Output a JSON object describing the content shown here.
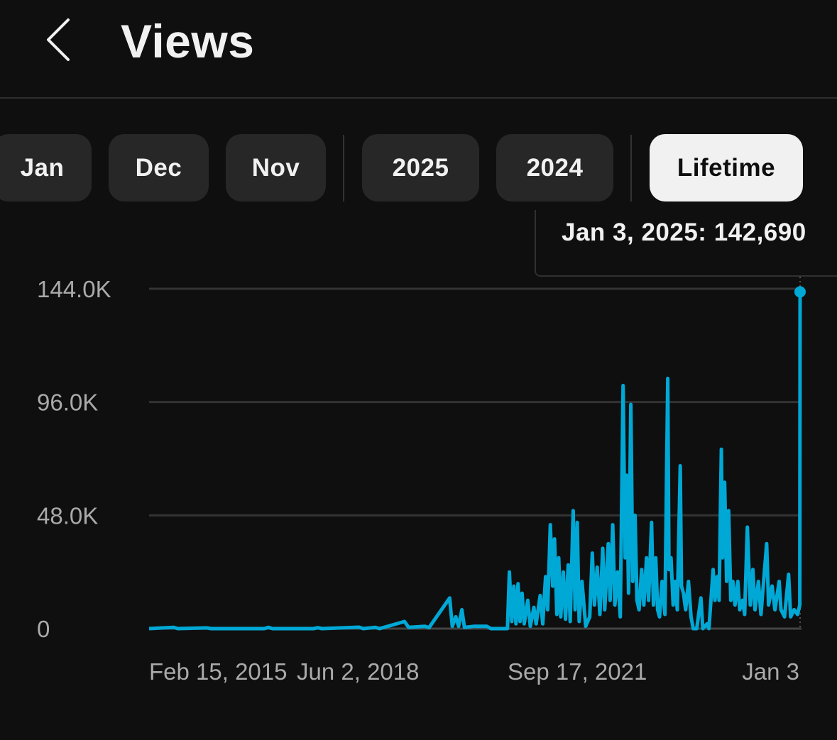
{
  "header": {
    "title": "Views",
    "back_icon": "chevron-left-icon"
  },
  "chips": [
    {
      "label": "Jan",
      "selected": false
    },
    {
      "label": "Dec",
      "selected": false
    },
    {
      "label": "Nov",
      "selected": false
    },
    {
      "label": "2025",
      "selected": false
    },
    {
      "label": "2024",
      "selected": false
    },
    {
      "label": "Lifetime",
      "selected": true
    }
  ],
  "tooltip": {
    "text": "Jan 3, 2025: 142,690"
  },
  "colors": {
    "background": "#0f0f0f",
    "line": "#00a8d6",
    "chip": "#272727",
    "chip_selected": "#f1f1f1",
    "grid": "#333333"
  },
  "chart_data": {
    "type": "line",
    "title": "",
    "xlabel": "",
    "ylabel": "",
    "ylim": [
      0,
      144000
    ],
    "y_ticks": [
      {
        "value": 0,
        "label": "0"
      },
      {
        "value": 48000,
        "label": "48.0K"
      },
      {
        "value": 96000,
        "label": "96.0K"
      },
      {
        "value": 144000,
        "label": "144.0K"
      }
    ],
    "x_ticks": [
      "Feb 15, 2015",
      "Jun 2, 2018",
      "Sep 17, 2021",
      "Jan 3"
    ],
    "x_range": [
      "2011-11-01",
      "2025-01-03"
    ],
    "grid": true,
    "highlight": {
      "date": "2025-01-03",
      "value": 142690
    },
    "series": [
      {
        "points": [
          [
            "2011-11-01",
            0
          ],
          [
            "2012-05-01",
            500
          ],
          [
            "2012-06-01",
            0
          ],
          [
            "2013-01-01",
            300
          ],
          [
            "2013-02-01",
            0
          ],
          [
            "2014-03-01",
            0
          ],
          [
            "2014-04-01",
            500
          ],
          [
            "2014-05-01",
            0
          ],
          [
            "2015-03-01",
            0
          ],
          [
            "2015-04-01",
            400
          ],
          [
            "2015-05-01",
            0
          ],
          [
            "2016-02-01",
            600
          ],
          [
            "2016-03-01",
            0
          ],
          [
            "2016-06-01",
            500
          ],
          [
            "2016-07-01",
            0
          ],
          [
            "2017-01-01",
            3000
          ],
          [
            "2017-02-01",
            500
          ],
          [
            "2017-06-01",
            1000
          ],
          [
            "2017-07-01",
            400
          ],
          [
            "2017-12-01",
            13000
          ],
          [
            "2017-12-20",
            1000
          ],
          [
            "2018-01-15",
            5000
          ],
          [
            "2018-02-05",
            1000
          ],
          [
            "2018-03-01",
            8000
          ],
          [
            "2018-03-20",
            500
          ],
          [
            "2018-06-01",
            1000
          ],
          [
            "2018-09-01",
            1000
          ],
          [
            "2018-10-01",
            0
          ],
          [
            "2019-02-01",
            0
          ],
          [
            "2019-02-15",
            24000
          ],
          [
            "2019-03-05",
            3000
          ],
          [
            "2019-03-20",
            18000
          ],
          [
            "2019-04-05",
            2000
          ],
          [
            "2019-04-20",
            19000
          ],
          [
            "2019-05-05",
            3000
          ],
          [
            "2019-05-20",
            15000
          ],
          [
            "2019-06-05",
            2000
          ],
          [
            "2019-07-01",
            12000
          ],
          [
            "2019-07-20",
            1000
          ],
          [
            "2019-08-15",
            9000
          ],
          [
            "2019-09-01",
            2000
          ],
          [
            "2019-10-01",
            14000
          ],
          [
            "2019-10-20",
            2000
          ],
          [
            "2019-11-10",
            22000
          ],
          [
            "2019-11-25",
            8000
          ],
          [
            "2019-12-15",
            44000
          ],
          [
            "2020-01-01",
            18000
          ],
          [
            "2020-01-15",
            38000
          ],
          [
            "2020-02-01",
            6000
          ],
          [
            "2020-02-15",
            30000
          ],
          [
            "2020-03-01",
            5000
          ],
          [
            "2020-03-20",
            24000
          ],
          [
            "2020-04-05",
            4000
          ],
          [
            "2020-04-25",
            27000
          ],
          [
            "2020-05-10",
            3000
          ],
          [
            "2020-06-01",
            50000
          ],
          [
            "2020-06-15",
            8000
          ],
          [
            "2020-07-01",
            45000
          ],
          [
            "2020-07-15",
            3000
          ],
          [
            "2020-08-05",
            20000
          ],
          [
            "2020-09-01",
            1000
          ],
          [
            "2020-10-01",
            5000
          ],
          [
            "2020-10-20",
            32000
          ],
          [
            "2020-11-05",
            10000
          ],
          [
            "2020-11-25",
            26000
          ],
          [
            "2020-12-15",
            6000
          ],
          [
            "2021-01-05",
            34000
          ],
          [
            "2021-01-20",
            8000
          ],
          [
            "2021-02-15",
            36000
          ],
          [
            "2021-03-01",
            12000
          ],
          [
            "2021-03-20",
            44000
          ],
          [
            "2021-04-05",
            10000
          ],
          [
            "2021-04-25",
            24000
          ],
          [
            "2021-05-15",
            5000
          ],
          [
            "2021-06-05",
            103000
          ],
          [
            "2021-06-20",
            30000
          ],
          [
            "2021-07-01",
            65000
          ],
          [
            "2021-07-15",
            15000
          ],
          [
            "2021-08-01",
            95000
          ],
          [
            "2021-08-15",
            20000
          ],
          [
            "2021-09-01",
            48000
          ],
          [
            "2021-09-15",
            12000
          ],
          [
            "2021-10-01",
            8000
          ],
          [
            "2021-10-20",
            25000
          ],
          [
            "2021-11-05",
            10000
          ],
          [
            "2021-11-25",
            30000
          ],
          [
            "2021-12-10",
            12000
          ],
          [
            "2022-01-01",
            45000
          ],
          [
            "2022-01-15",
            10000
          ],
          [
            "2022-02-01",
            30000
          ],
          [
            "2022-02-15",
            8000
          ],
          [
            "2022-03-01",
            5000
          ],
          [
            "2022-03-20",
            20000
          ],
          [
            "2022-04-10",
            6000
          ],
          [
            "2022-05-01",
            106000
          ],
          [
            "2022-05-10",
            25000
          ],
          [
            "2022-05-25",
            30000
          ],
          [
            "2022-06-10",
            10000
          ],
          [
            "2022-06-25",
            20000
          ],
          [
            "2022-07-10",
            8000
          ],
          [
            "2022-08-01",
            69000
          ],
          [
            "2022-08-10",
            18000
          ],
          [
            "2022-08-25",
            15000
          ],
          [
            "2022-09-10",
            8000
          ],
          [
            "2022-10-01",
            20000
          ],
          [
            "2022-10-20",
            5000
          ],
          [
            "2022-11-05",
            0
          ],
          [
            "2022-12-01",
            0
          ],
          [
            "2023-01-01",
            13000
          ],
          [
            "2023-01-15",
            0
          ],
          [
            "2023-02-15",
            2000
          ],
          [
            "2023-03-01",
            0
          ],
          [
            "2023-04-01",
            25000
          ],
          [
            "2023-04-15",
            12000
          ],
          [
            "2023-05-01",
            22000
          ],
          [
            "2023-05-15",
            12000
          ],
          [
            "2023-06-01",
            76000
          ],
          [
            "2023-06-10",
            30000
          ],
          [
            "2023-06-25",
            62000
          ],
          [
            "2023-07-10",
            20000
          ],
          [
            "2023-07-25",
            50000
          ],
          [
            "2023-08-10",
            12000
          ],
          [
            "2023-08-25",
            20000
          ],
          [
            "2023-09-10",
            10000
          ],
          [
            "2023-10-01",
            20000
          ],
          [
            "2023-10-15",
            8000
          ],
          [
            "2023-11-05",
            12000
          ],
          [
            "2023-11-20",
            6000
          ],
          [
            "2023-12-10",
            43000
          ],
          [
            "2024-01-01",
            10000
          ],
          [
            "2024-01-20",
            25000
          ],
          [
            "2024-02-05",
            8000
          ],
          [
            "2024-03-01",
            20000
          ],
          [
            "2024-03-20",
            6000
          ],
          [
            "2024-05-01",
            36000
          ],
          [
            "2024-05-15",
            10000
          ],
          [
            "2024-06-10",
            18000
          ],
          [
            "2024-07-01",
            8000
          ],
          [
            "2024-08-01",
            20000
          ],
          [
            "2024-08-15",
            8000
          ],
          [
            "2024-09-10",
            5000
          ],
          [
            "2024-10-10",
            23000
          ],
          [
            "2024-10-25",
            5000
          ],
          [
            "2024-11-20",
            8000
          ],
          [
            "2024-12-15",
            6000
          ],
          [
            "2025-01-01",
            10000
          ],
          [
            "2025-01-03",
            142690
          ]
        ]
      }
    ]
  }
}
